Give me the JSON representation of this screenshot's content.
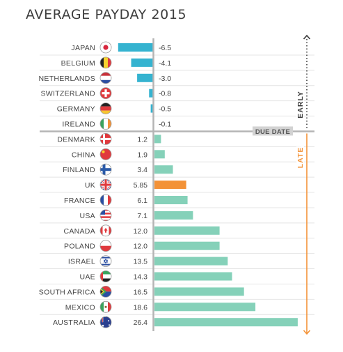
{
  "title": "AVERAGE PAYDAY 2015",
  "labels": {
    "due_date": "DUE DATE",
    "early": "EARLY",
    "late": "LATE"
  },
  "colors": {
    "early_bar": "#35b3d0",
    "late_bar": "#85d1b9",
    "highlight_bar": "#f39237",
    "early_arrow": "#3a3a3a",
    "late_arrow": "#f39237"
  },
  "chart_data": {
    "type": "bar",
    "orientation": "horizontal",
    "title": "AVERAGE PAYDAY 2015",
    "highlight": "UK",
    "categories": [
      "JAPAN",
      "BELGIUM",
      "NETHERLANDS",
      "SWITZERLAND",
      "GERMANY",
      "IRELAND",
      "DENMARK",
      "CHINA",
      "FINLAND",
      "UK",
      "FRANCE",
      "USA",
      "CANADA",
      "POLAND",
      "ISRAEL",
      "UAE",
      "SOUTH AFRICA",
      "MEXICO",
      "AUSTRALIA"
    ],
    "values": [
      -6.5,
      -4.1,
      -3.0,
      -0.8,
      -0.5,
      -0.1,
      1.2,
      1.9,
      3.4,
      5.85,
      6.1,
      7.1,
      12.0,
      12.0,
      13.5,
      14.3,
      16.5,
      18.6,
      26.4
    ],
    "value_labels": [
      "-6.5",
      "-4.1",
      "-3.0",
      "-0.8",
      "-0.5",
      "-0.1",
      "1.2",
      "1.9",
      "3.4",
      "5.85",
      "6.1",
      "7.1",
      "12.0",
      "12.0",
      "13.5",
      "14.3",
      "16.5",
      "18.6",
      "26.4"
    ],
    "flags": [
      "japan-flag-icon",
      "belgium-flag-icon",
      "netherlands-flag-icon",
      "switzerland-flag-icon",
      "germany-flag-icon",
      "ireland-flag-icon",
      "denmark-flag-icon",
      "china-flag-icon",
      "finland-flag-icon",
      "uk-flag-icon",
      "france-flag-icon",
      "usa-flag-icon",
      "canada-flag-icon",
      "poland-flag-icon",
      "israel-flag-icon",
      "uae-flag-icon",
      "south-africa-flag-icon",
      "mexico-flag-icon",
      "australia-flag-icon"
    ],
    "xlim": [
      -6.5,
      26.4
    ],
    "grid": false
  }
}
